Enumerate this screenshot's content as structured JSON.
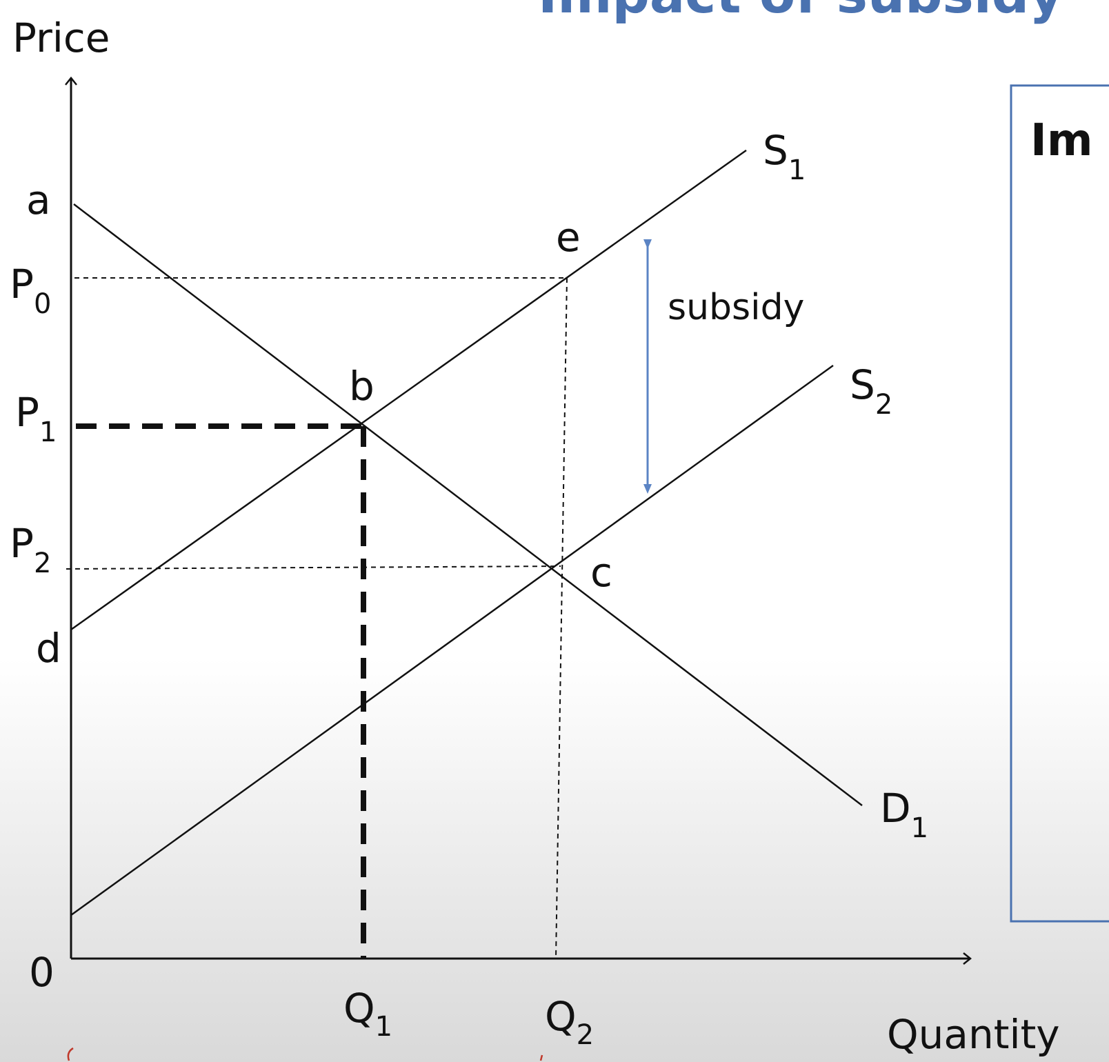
{
  "slide": {
    "title_fragment": "Impact of subsidy"
  },
  "axes": {
    "y_label": "Price",
    "x_label": "Quantity",
    "origin_label": "0"
  },
  "price_labels": {
    "a": "a",
    "p0": "P",
    "p0_sub": "0",
    "p1": "P",
    "p1_sub": "1",
    "p2": "P",
    "p2_sub": "2",
    "d": "d"
  },
  "quantity_labels": {
    "q1": "Q",
    "q1_sub": "1",
    "q2": "Q",
    "q2_sub": "2"
  },
  "curve_labels": {
    "s1": "S",
    "s1_sub": "1",
    "s2": "S",
    "s2_sub": "2",
    "d1": "D",
    "d1_sub": "1"
  },
  "point_labels": {
    "b": "b",
    "c": "c",
    "e": "e"
  },
  "annotation": {
    "subsidy": "subsidy",
    "subsidy_arrow_color": "#5b84c4"
  },
  "side_panel": {
    "title_fragment": "Im",
    "border_color": "#4a72b0"
  }
}
